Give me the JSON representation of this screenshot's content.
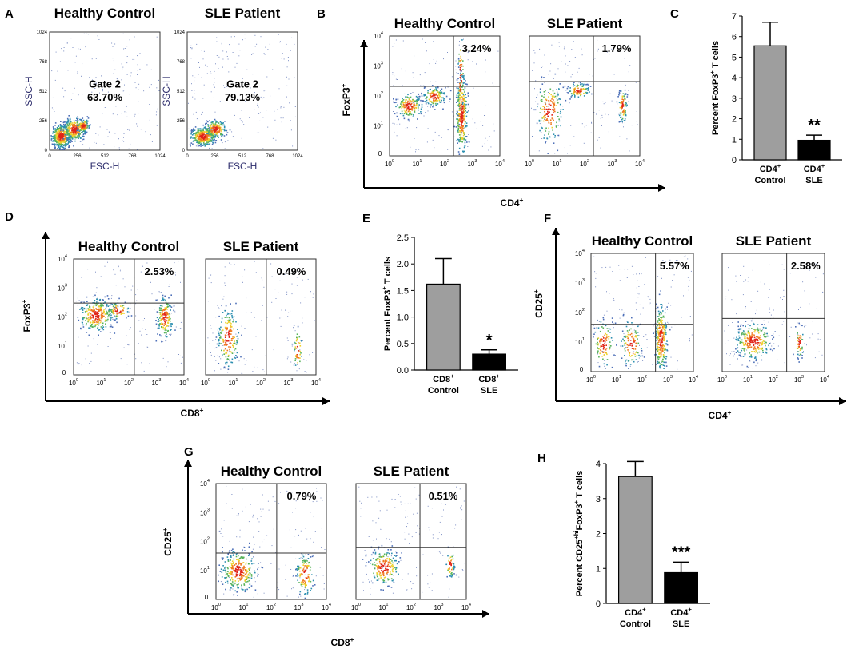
{
  "panels": {
    "A": {
      "letter": "A",
      "plots": [
        {
          "title": "Healthy Control",
          "gate_label": "Gate 2",
          "percent": "63.70%"
        },
        {
          "title": "SLE Patient",
          "gate_label": "Gate 2",
          "percent": "79.13%"
        }
      ],
      "x_label": "FSC-H",
      "y_label": "SSC-H",
      "ticks": [
        "0",
        "256",
        "512",
        "768",
        "1024"
      ]
    },
    "B": {
      "letter": "B",
      "plots": [
        {
          "title": "Healthy Control",
          "percent": "3.24%"
        },
        {
          "title": "SLE Patient",
          "percent": "1.79%"
        }
      ],
      "x_label": "CD4",
      "y_label": "FoxP3",
      "sup": "+"
    },
    "D": {
      "letter": "D",
      "plots": [
        {
          "title": "Healthy Control",
          "percent": "2.53%"
        },
        {
          "title": "SLE Patient",
          "percent": "0.49%"
        }
      ],
      "x_label": "CD8",
      "y_label": "FoxP3",
      "sup": "+"
    },
    "F": {
      "letter": "F",
      "plots": [
        {
          "title": "Healthy Control",
          "percent": "5.57%"
        },
        {
          "title": "SLE Patient",
          "percent": "2.58%"
        }
      ],
      "x_label": "CD4",
      "y_label": "CD25",
      "sup": "+"
    },
    "G": {
      "letter": "G",
      "plots": [
        {
          "title": "Healthy Control",
          "percent": "0.79%"
        },
        {
          "title": "SLE Patient",
          "percent": "0.51%"
        }
      ],
      "x_label": "CD8",
      "y_label": "CD25",
      "sup": "+"
    },
    "C": {
      "letter": "C"
    },
    "E": {
      "letter": "E"
    },
    "H": {
      "letter": "H"
    }
  },
  "log_ticks": {
    "base": "10",
    "exponents": [
      "0",
      "1",
      "2",
      "3",
      "4"
    ]
  },
  "chart_data": [
    {
      "panel": "C",
      "type": "bar",
      "categories": [
        [
          "CD4",
          "+",
          "Control"
        ],
        [
          "CD4",
          "+",
          "SLE"
        ]
      ],
      "values": [
        5.55,
        0.95
      ],
      "errors": [
        1.15,
        0.25
      ],
      "colors": [
        "#9e9e9e",
        "#000000"
      ],
      "ylabel_parts": [
        "Percent  FoxP3",
        "+",
        " T cells"
      ],
      "ylim": [
        0,
        7
      ],
      "yticks": [
        "0",
        "1",
        "2",
        "3",
        "4",
        "5",
        "6",
        "7"
      ],
      "significance": "**"
    },
    {
      "panel": "E",
      "type": "bar",
      "categories": [
        [
          "CD8",
          "+",
          "Control"
        ],
        [
          "CD8",
          "+",
          "SLE"
        ]
      ],
      "values": [
        1.62,
        0.3
      ],
      "errors": [
        0.48,
        0.08
      ],
      "colors": [
        "#9e9e9e",
        "#000000"
      ],
      "ylabel_parts": [
        "Percent FoxP3",
        "+",
        " T cells"
      ],
      "ylim": [
        0,
        2.5
      ],
      "yticks": [
        "0.0",
        "0.5",
        "1.0",
        "1.5",
        "2.0",
        "2.5"
      ],
      "significance": "*"
    },
    {
      "panel": "H",
      "type": "bar",
      "categories": [
        [
          "CD4",
          "+",
          "Control"
        ],
        [
          "CD4",
          "+",
          "SLE"
        ]
      ],
      "values": [
        3.63,
        0.88
      ],
      "errors": [
        0.43,
        0.3
      ],
      "colors": [
        "#9e9e9e",
        "#000000"
      ],
      "ylabel_parts": [
        "Percent CD25",
        "+hi",
        "FoxP3",
        "+",
        " T cells"
      ],
      "ylim": [
        0,
        4
      ],
      "yticks": [
        "0",
        "1",
        "2",
        "3",
        "4"
      ],
      "significance": "***"
    }
  ]
}
